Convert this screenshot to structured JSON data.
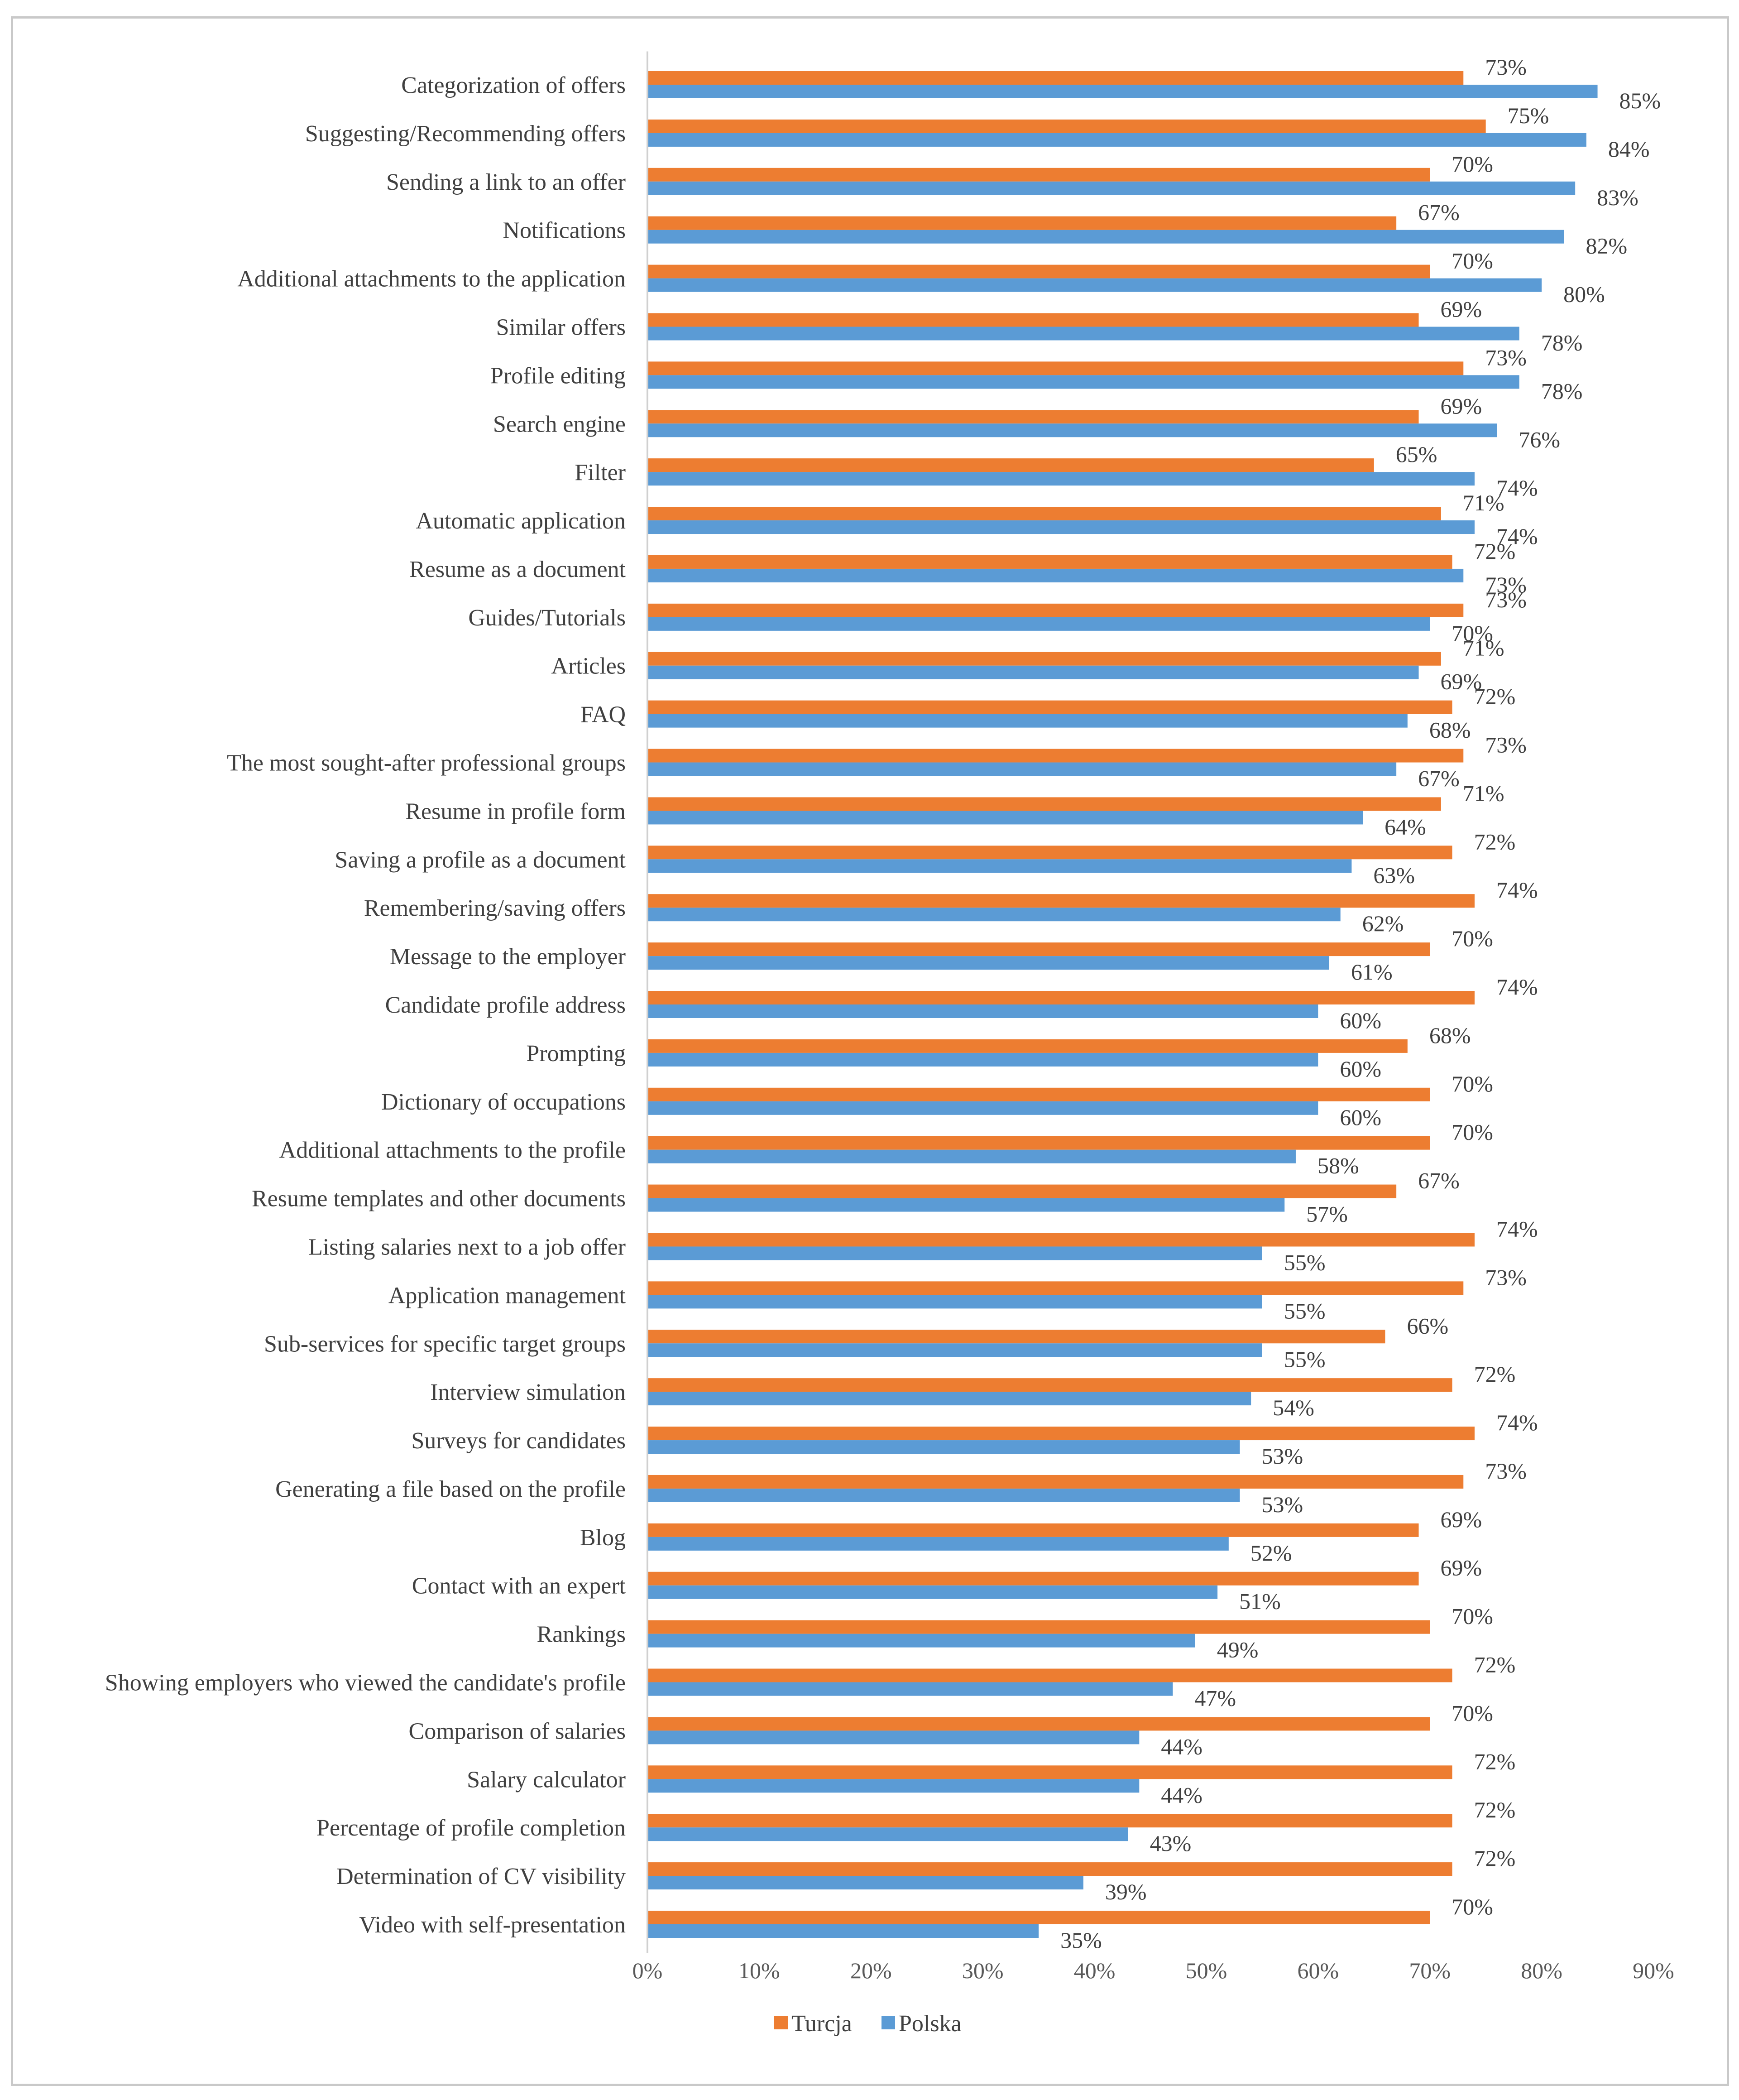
{
  "chart_data": {
    "type": "bar",
    "orientation": "horizontal",
    "title": "",
    "xlabel": "",
    "ylabel": "",
    "xlim": [
      0,
      90
    ],
    "x_ticks": [
      "0%",
      "10%",
      "20%",
      "30%",
      "40%",
      "50%",
      "60%",
      "70%",
      "80%",
      "90%"
    ],
    "grid": false,
    "legend_position": "bottom",
    "categories": [
      "Categorization of offers",
      "Suggesting/Recommending offers",
      "Sending a link to an offer",
      "Notifications",
      "Additional attachments to the application",
      "Similar offers",
      "Profile editing",
      "Search engine",
      "Filter",
      "Automatic application",
      "Resume as a document",
      "Guides/Tutorials",
      "Articles",
      "FAQ",
      "The most sought-after professional groups",
      "Resume in profile form",
      "Saving a profile as a document",
      "Remembering/saving offers",
      "Message to the employer",
      "Candidate profile address",
      "Prompting",
      "Dictionary of occupations",
      "Additional attachments to the profile",
      "Resume templates and other documents",
      "Listing salaries next to a job offer",
      "Application management",
      "Sub-services for specific target groups",
      "Interview simulation",
      "Surveys for candidates",
      "Generating a file based on the profile",
      "Blog",
      "Contact with an expert",
      "Rankings",
      "Showing employers who viewed the candidate's profile",
      "Comparison of salaries",
      "Salary calculator",
      "Percentage of profile completion",
      "Determination of CV visibility",
      "Video with self-presentation"
    ],
    "series": [
      {
        "name": "Turcja",
        "color": "#ed7d31",
        "values": [
          73,
          75,
          70,
          67,
          70,
          69,
          73,
          69,
          65,
          71,
          72,
          73,
          71,
          72,
          73,
          71,
          72,
          74,
          70,
          74,
          68,
          70,
          70,
          67,
          74,
          73,
          66,
          72,
          74,
          73,
          69,
          69,
          70,
          72,
          70,
          72,
          72,
          72,
          70
        ],
        "labels": [
          "73%",
          "75%",
          "70%",
          "67%",
          "70%",
          "69%",
          "73%",
          "69%",
          "65%",
          "71%",
          "72%",
          "73%",
          "71%",
          "72%",
          "73%",
          "71%",
          "72%",
          "74%",
          "70%",
          "74%",
          "68%",
          "70%",
          "70%",
          "67%",
          "74%",
          "73%",
          "66%",
          "72%",
          "74%",
          "73%",
          "69%",
          "69%",
          "70%",
          "72%",
          "70%",
          "72%",
          "72%",
          "72%",
          "70%"
        ]
      },
      {
        "name": "Polska",
        "color": "#5b9bd5",
        "values": [
          85,
          84,
          83,
          82,
          80,
          78,
          78,
          76,
          74,
          74,
          73,
          70,
          69,
          68,
          67,
          64,
          63,
          62,
          61,
          60,
          60,
          60,
          58,
          57,
          55,
          55,
          55,
          54,
          53,
          53,
          52,
          51,
          49,
          47,
          44,
          44,
          43,
          39,
          35
        ],
        "labels": [
          "85%",
          "84%",
          "83%",
          "82%",
          "80%",
          "78%",
          "78%",
          "76%",
          "74%",
          "74%",
          "73%",
          "70%",
          "69%",
          "68%",
          "67%",
          "64%",
          "63%",
          "62%",
          "61%",
          "60%",
          "60%",
          "60%",
          "58%",
          "57%",
          "55%",
          "55%",
          "55%",
          "54%",
          "53%",
          "53%",
          "52%",
          "51%",
          "49%",
          "47%",
          "44%",
          "44%",
          "43%",
          "39%",
          "35%"
        ]
      }
    ],
    "legend": [
      "Turcja",
      "Polska"
    ]
  }
}
